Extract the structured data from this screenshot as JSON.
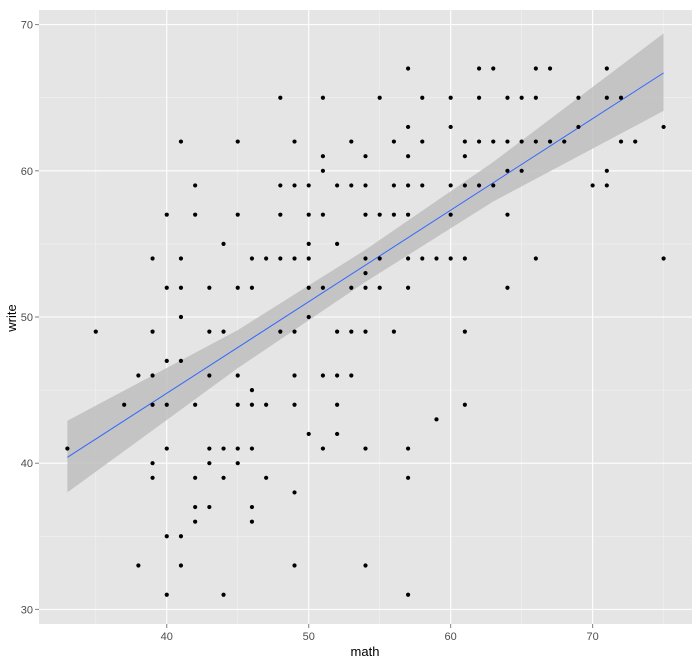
{
  "chart_data": {
    "type": "scatter",
    "xlabel": "math",
    "ylabel": "write",
    "xlim": [
      31,
      77
    ],
    "ylim": [
      29,
      71
    ],
    "x_ticks": [
      40,
      50,
      60,
      70
    ],
    "y_ticks": [
      30,
      40,
      50,
      60,
      70
    ],
    "x_tick_labels": [
      "40",
      "50",
      "60",
      "70"
    ],
    "y_tick_labels": [
      "30",
      "40",
      "50",
      "60",
      "70"
    ],
    "grid": true,
    "background_color": "#e5e5e5",
    "grid_color": "#ffffff",
    "point_color": "#000000",
    "fit_line_color": "#3366ff",
    "ribbon_color": "#bebebe",
    "points": [
      [
        33,
        41
      ],
      [
        35,
        49
      ],
      [
        37,
        44
      ],
      [
        38,
        46
      ],
      [
        38,
        33
      ],
      [
        39,
        54
      ],
      [
        39,
        49
      ],
      [
        39,
        46
      ],
      [
        39,
        44
      ],
      [
        39,
        40
      ],
      [
        39,
        39
      ],
      [
        40,
        57
      ],
      [
        40,
        52
      ],
      [
        40,
        47
      ],
      [
        40,
        44
      ],
      [
        40,
        41
      ],
      [
        40,
        35
      ],
      [
        40,
        31
      ],
      [
        41,
        62
      ],
      [
        41,
        54
      ],
      [
        41,
        52
      ],
      [
        41,
        50
      ],
      [
        41,
        47
      ],
      [
        41,
        35
      ],
      [
        41,
        33
      ],
      [
        42,
        59
      ],
      [
        42,
        57
      ],
      [
        42,
        44
      ],
      [
        42,
        39
      ],
      [
        42,
        37
      ],
      [
        42,
        36
      ],
      [
        43,
        52
      ],
      [
        43,
        49
      ],
      [
        43,
        46
      ],
      [
        43,
        41
      ],
      [
        43,
        40
      ],
      [
        43,
        37
      ],
      [
        44,
        55
      ],
      [
        44,
        49
      ],
      [
        44,
        41
      ],
      [
        44,
        39
      ],
      [
        44,
        31
      ],
      [
        45,
        62
      ],
      [
        45,
        57
      ],
      [
        45,
        52
      ],
      [
        45,
        46
      ],
      [
        45,
        44
      ],
      [
        45,
        41
      ],
      [
        45,
        40
      ],
      [
        46,
        54
      ],
      [
        46,
        52
      ],
      [
        46,
        45
      ],
      [
        46,
        44
      ],
      [
        46,
        41
      ],
      [
        46,
        37
      ],
      [
        46,
        36
      ],
      [
        47,
        54
      ],
      [
        47,
        44
      ],
      [
        47,
        39
      ],
      [
        48,
        65
      ],
      [
        48,
        59
      ],
      [
        48,
        57
      ],
      [
        48,
        54
      ],
      [
        48,
        49
      ],
      [
        49,
        62
      ],
      [
        49,
        59
      ],
      [
        49,
        54
      ],
      [
        49,
        49
      ],
      [
        49,
        46
      ],
      [
        49,
        44
      ],
      [
        49,
        38
      ],
      [
        49,
        33
      ],
      [
        50,
        59
      ],
      [
        50,
        57
      ],
      [
        50,
        55
      ],
      [
        50,
        54
      ],
      [
        50,
        52
      ],
      [
        50,
        50
      ],
      [
        50,
        42
      ],
      [
        51,
        65
      ],
      [
        51,
        61
      ],
      [
        51,
        60
      ],
      [
        51,
        57
      ],
      [
        51,
        52
      ],
      [
        51,
        46
      ],
      [
        51,
        41
      ],
      [
        52,
        59
      ],
      [
        52,
        55
      ],
      [
        52,
        49
      ],
      [
        52,
        46
      ],
      [
        52,
        44
      ],
      [
        52,
        42
      ],
      [
        53,
        62
      ],
      [
        53,
        59
      ],
      [
        53,
        52
      ],
      [
        53,
        49
      ],
      [
        53,
        46
      ],
      [
        54,
        61
      ],
      [
        54,
        59
      ],
      [
        54,
        57
      ],
      [
        54,
        54
      ],
      [
        54,
        53
      ],
      [
        54,
        52
      ],
      [
        54,
        49
      ],
      [
        54,
        41
      ],
      [
        54,
        33
      ],
      [
        55,
        65
      ],
      [
        55,
        57
      ],
      [
        55,
        54
      ],
      [
        55,
        52
      ],
      [
        56,
        62
      ],
      [
        56,
        59
      ],
      [
        56,
        57
      ],
      [
        56,
        49
      ],
      [
        57,
        67
      ],
      [
        57,
        63
      ],
      [
        57,
        61
      ],
      [
        57,
        59
      ],
      [
        57,
        57
      ],
      [
        57,
        54
      ],
      [
        57,
        52
      ],
      [
        57,
        41
      ],
      [
        57,
        39
      ],
      [
        57,
        31
      ],
      [
        58,
        65
      ],
      [
        58,
        62
      ],
      [
        58,
        59
      ],
      [
        58,
        54
      ],
      [
        59,
        54
      ],
      [
        59,
        43
      ],
      [
        60,
        65
      ],
      [
        60,
        63
      ],
      [
        60,
        59
      ],
      [
        60,
        57
      ],
      [
        60,
        54
      ],
      [
        61,
        62
      ],
      [
        61,
        61
      ],
      [
        61,
        59
      ],
      [
        61,
        54
      ],
      [
        61,
        49
      ],
      [
        61,
        44
      ],
      [
        62,
        67
      ],
      [
        62,
        65
      ],
      [
        62,
        62
      ],
      [
        62,
        59
      ],
      [
        63,
        67
      ],
      [
        63,
        62
      ],
      [
        63,
        59
      ],
      [
        64,
        65
      ],
      [
        64,
        62
      ],
      [
        64,
        60
      ],
      [
        64,
        57
      ],
      [
        64,
        52
      ],
      [
        65,
        65
      ],
      [
        65,
        62
      ],
      [
        65,
        60
      ],
      [
        66,
        67
      ],
      [
        66,
        65
      ],
      [
        66,
        62
      ],
      [
        66,
        54
      ],
      [
        67,
        67
      ],
      [
        67,
        62
      ],
      [
        68,
        62
      ],
      [
        69,
        65
      ],
      [
        69,
        63
      ],
      [
        70,
        59
      ],
      [
        71,
        67
      ],
      [
        71,
        65
      ],
      [
        71,
        60
      ],
      [
        71,
        59
      ],
      [
        72,
        65
      ],
      [
        72,
        62
      ],
      [
        73,
        62
      ],
      [
        75,
        63
      ],
      [
        75,
        54
      ]
    ],
    "fit_line": {
      "x": [
        33,
        75
      ],
      "y": [
        40.4,
        66.7
      ]
    },
    "confidence_band": {
      "x": [
        33,
        45,
        54,
        63,
        75
      ],
      "lower": [
        38.0,
        46.5,
        52.4,
        57.9,
        64.1
      ],
      "upper": [
        42.9,
        49.1,
        54.6,
        60.6,
        69.4
      ]
    }
  }
}
